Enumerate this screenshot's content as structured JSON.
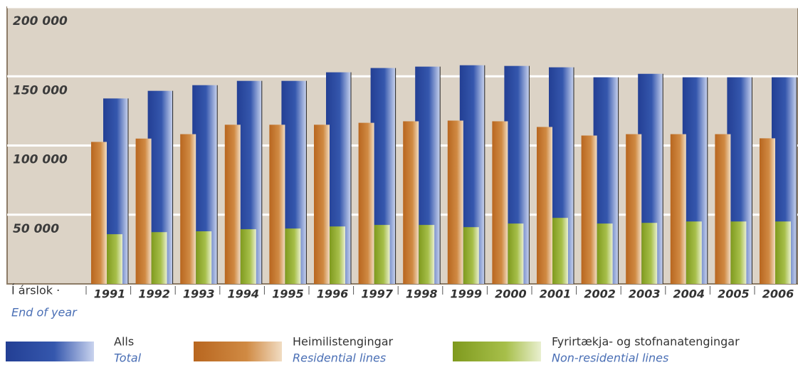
{
  "chart_data": {
    "type": "bar",
    "x_label": "Í árslok ·",
    "x_label_en": "End of year",
    "categories": [
      "1991",
      "1992",
      "1993",
      "1994",
      "1995",
      "1996",
      "1997",
      "1998",
      "1999",
      "2000",
      "2001",
      "2002",
      "2003",
      "2004",
      "2005",
      "2006"
    ],
    "series": [
      {
        "name": "Alls",
        "name_en": "Total",
        "color": "#2b4a9e",
        "values": [
          134000,
          139500,
          143600,
          146700,
          146700,
          152900,
          156000,
          157000,
          158000,
          157500,
          156500,
          149300,
          151800,
          149300,
          149300,
          149300
        ]
      },
      {
        "name": "Heimilistengingar",
        "name_en": "Residential lines",
        "color": "#c8772c",
        "values": [
          102600,
          105000,
          108200,
          115000,
          115000,
          115000,
          116400,
          117500,
          118000,
          117500,
          113400,
          107200,
          108200,
          108200,
          108200,
          105200
        ]
      },
      {
        "name": "Fyrirtækja- og stofnanatengingar",
        "name_en": "Non-residential lines",
        "color": "#8ea829",
        "values": [
          35900,
          37400,
          38000,
          39500,
          40000,
          41500,
          42600,
          42600,
          41000,
          43600,
          47700,
          43600,
          44100,
          45100,
          45100,
          45100
        ]
      }
    ],
    "ylim": [
      0,
      200000
    ],
    "yticks": [
      {
        "value": 50000,
        "label": "50 000"
      },
      {
        "value": 100000,
        "label": "100 000"
      },
      {
        "value": 150000,
        "label": "150 000"
      },
      {
        "value": 200000,
        "label": "200 000"
      }
    ],
    "grid": true
  }
}
